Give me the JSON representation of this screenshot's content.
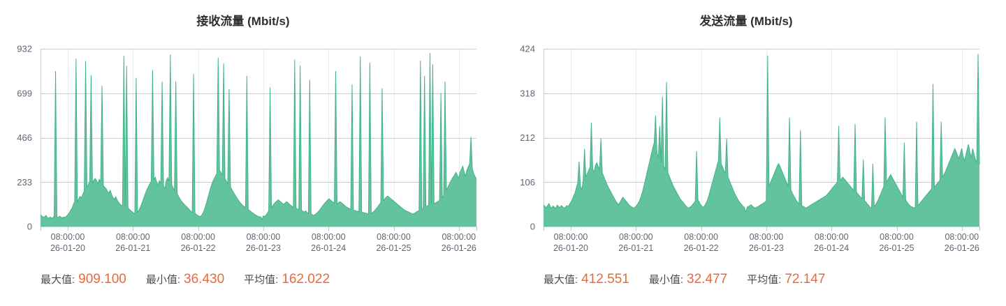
{
  "page": {
    "background": "#ffffff"
  },
  "colors": {
    "series_fill": "#62c39c",
    "series_line": "#42b389",
    "grid_line": "#cccccc",
    "v_grid_line": "#e9ecf3",
    "axis_line": "#ccd2dd",
    "axis_tick": "#b9c4da",
    "axis_label": "#5f6673"
  },
  "chart_data": [
    {
      "type": "area",
      "title": "接收流量 (Mbit/s)",
      "unit": "Mbit/s",
      "ylim": [
        0,
        932
      ],
      "y_ticks": [
        0,
        233,
        466,
        699,
        932
      ],
      "x_ticks": [
        {
          "time": "08:00:00",
          "date": "26-01-20"
        },
        {
          "time": "08:00:00",
          "date": "26-01-21"
        },
        {
          "time": "08:00:00",
          "date": "26-01-22"
        },
        {
          "time": "08:00:00",
          "date": "26-01-23"
        },
        {
          "time": "08:00:00",
          "date": "26-01-24"
        },
        {
          "time": "08:00:00",
          "date": "26-01-25"
        },
        {
          "time": "08:00:00",
          "date": "26-01-26"
        }
      ],
      "grid": true,
      "legend": "none",
      "stats": {
        "max_label": "最大值:",
        "max": "909.100",
        "min_label": "最小值:",
        "min": "36.430",
        "avg_label": "平均值:",
        "avg": "162.022"
      },
      "values": [
        62,
        55,
        48,
        52,
        58,
        47,
        43,
        50,
        46,
        44,
        56,
        815,
        52,
        47,
        54,
        49,
        45,
        50,
        48,
        55,
        62,
        72,
        85,
        95,
        115,
        130,
        880,
        128,
        146,
        158,
        150,
        170,
        186,
        868,
        204,
        220,
        238,
        795,
        226,
        244,
        252,
        240,
        224,
        248,
        232,
        738,
        214,
        206,
        198,
        184,
        176,
        190,
        168,
        152,
        144,
        156,
        140,
        128,
        120,
        110,
        114,
        895,
        106,
        842,
        98,
        90,
        84,
        78,
        72,
        68,
        780,
        74,
        86,
        100,
        118,
        138,
        158,
        178,
        196,
        210,
        224,
        238,
        820,
        246,
        258,
        232,
        218,
        240,
        226,
        760,
        212,
        198,
        240,
        256,
        234,
        902,
        220,
        204,
        188,
        760,
        172,
        158,
        146,
        134,
        126,
        118,
        110,
        104,
        96,
        88,
        80,
        74,
        800,
        70,
        64,
        58,
        54,
        52,
        60,
        72,
        90,
        112,
        138,
        164,
        190,
        214,
        234,
        250,
        264,
        278,
        885,
        296,
        284,
        268,
        855,
        252,
        238,
        224,
        720,
        208,
        194,
        182,
        170,
        158,
        146,
        136,
        126,
        118,
        110,
        104,
        98,
        790,
        90,
        84,
        78,
        72,
        68,
        62,
        58,
        54,
        50,
        52,
        37,
        56,
        52,
        60,
        70,
        82,
        730,
        100,
        110,
        120,
        128,
        134,
        140,
        134,
        128,
        122,
        116,
        124,
        130,
        126,
        118,
        112,
        106,
        100,
        876,
        96,
        92,
        88,
        845,
        84,
        80,
        76,
        82,
        74,
        70,
        770,
        66,
        62,
        58,
        64,
        70,
        76,
        84,
        94,
        104,
        114,
        122,
        130,
        138,
        146,
        140,
        134,
        128,
        122,
        815,
        118,
        124,
        130,
        126,
        120,
        114,
        108,
        102,
        98,
        94,
        90,
        745,
        86,
        84,
        82,
        80,
        78,
        892,
        76,
        74,
        72,
        70,
        68,
        64,
        860,
        68,
        74,
        80,
        88,
        96,
        106,
        116,
        126,
        725,
        136,
        146,
        154,
        160,
        154,
        148,
        142,
        136,
        130,
        124,
        118,
        112,
        106,
        100,
        94,
        88,
        84,
        80,
        78,
        74,
        70,
        66,
        68,
        70,
        76,
        80,
        84,
        870,
        92,
        96,
        790,
        104,
        108,
        112,
        909,
        116,
        850,
        120,
        124,
        128,
        132,
        138,
        700,
        150,
        162,
        760,
        190,
        205,
        220,
        235,
        248,
        260,
        272,
        284,
        270,
        252,
        286,
        300,
        316,
        288,
        262,
        296,
        312,
        330,
        470,
        302,
        278,
        262,
        250
      ]
    },
    {
      "type": "area",
      "title": "发送流量 (Mbit/s)",
      "unit": "Mbit/s",
      "ylim": [
        0,
        424
      ],
      "y_ticks": [
        0,
        106,
        212,
        318,
        424
      ],
      "x_ticks": [
        {
          "time": "08:00:00",
          "date": "26-01-20"
        },
        {
          "time": "08:00:00",
          "date": "26-01-21"
        },
        {
          "time": "08:00:00",
          "date": "26-01-22"
        },
        {
          "time": "08:00:00",
          "date": "26-01-23"
        },
        {
          "time": "08:00:00",
          "date": "26-01-24"
        },
        {
          "time": "08:00:00",
          "date": "26-01-25"
        },
        {
          "time": "08:00:00",
          "date": "26-01-26"
        }
      ],
      "grid": true,
      "legend": "none",
      "stats": {
        "max_label": "最大值:",
        "max": "412.551",
        "min_label": "最小值:",
        "min": "32.477",
        "avg_label": "平均值:",
        "avg": "72.147"
      },
      "values": [
        52,
        48,
        45,
        50,
        55,
        47,
        44,
        49,
        46,
        43,
        51,
        48,
        45,
        50,
        47,
        44,
        46,
        50,
        48,
        53,
        58,
        64,
        72,
        80,
        92,
        104,
        155,
        96,
        88,
        110,
        185,
        118,
        126,
        134,
        142,
        248,
        138,
        130,
        146,
        152,
        144,
        136,
        210,
        128,
        120,
        112,
        104,
        96,
        90,
        84,
        78,
        72,
        66,
        60,
        56,
        52,
        58,
        64,
        70,
        66,
        62,
        58,
        54,
        50,
        48,
        46,
        44,
        46,
        50,
        54,
        60,
        68,
        78,
        90,
        104,
        118,
        132,
        146,
        160,
        174,
        188,
        200,
        265,
        176,
        164,
        240,
        152,
        310,
        144,
        136,
        345,
        128,
        120,
        112,
        104,
        96,
        90,
        84,
        78,
        72,
        66,
        62,
        58,
        54,
        50,
        46,
        44,
        46,
        48,
        52,
        56,
        60,
        180,
        64,
        58,
        52,
        48,
        46,
        50,
        56,
        64,
        74,
        86,
        98,
        110,
        122,
        134,
        146,
        158,
        260,
        150,
        142,
        134,
        126,
        210,
        118,
        110,
        102,
        94,
        86,
        78,
        72,
        66,
        60,
        56,
        52,
        48,
        46,
        33,
        46,
        48,
        50,
        52,
        48,
        46,
        44,
        46,
        48,
        50,
        52,
        54,
        56,
        58,
        62,
        408,
        96,
        104,
        112,
        120,
        128,
        136,
        144,
        150,
        144,
        136,
        128,
        120,
        112,
        104,
        96,
        260,
        88,
        80,
        74,
        68,
        62,
        58,
        54,
        230,
        50,
        48,
        46,
        44,
        46,
        48,
        50,
        52,
        54,
        56,
        58,
        60,
        62,
        64,
        66,
        68,
        70,
        72,
        74,
        78,
        82,
        86,
        90,
        94,
        98,
        102,
        106,
        240,
        110,
        114,
        118,
        114,
        110,
        106,
        102,
        98,
        94,
        90,
        86,
        245,
        82,
        78,
        74,
        70,
        66,
        160,
        62,
        58,
        54,
        50,
        46,
        44,
        150,
        48,
        52,
        58,
        64,
        72,
        80,
        88,
        96,
        260,
        104,
        112,
        118,
        124,
        118,
        112,
        106,
        100,
        94,
        88,
        82,
        76,
        70,
        200,
        64,
        58,
        54,
        50,
        48,
        46,
        44,
        46,
        250,
        50,
        54,
        58,
        62,
        66,
        70,
        74,
        78,
        82,
        86,
        90,
        340,
        94,
        98,
        102,
        106,
        110,
        250,
        118,
        124,
        130,
        138,
        146,
        154,
        162,
        170,
        178,
        186,
        178,
        170,
        162,
        174,
        186,
        168,
        156,
        170,
        184,
        196,
        178,
        164,
        186,
        174,
        160,
        152,
        412,
        148
      ]
    }
  ]
}
